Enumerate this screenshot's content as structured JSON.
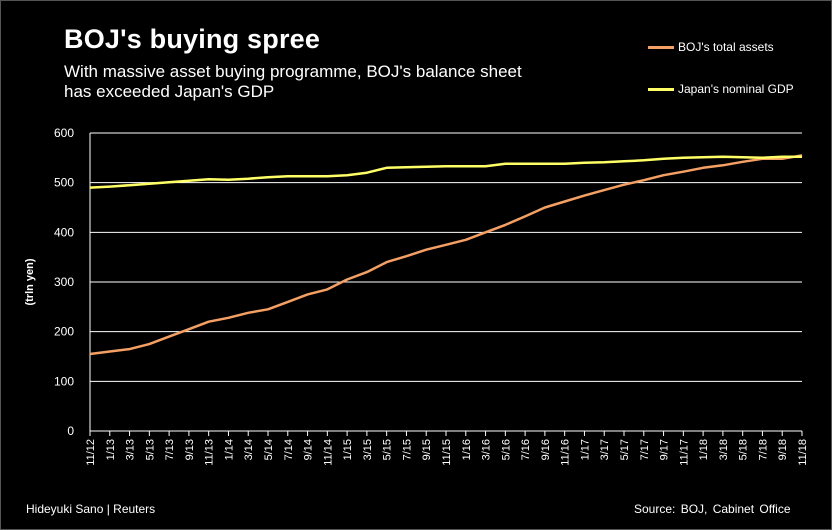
{
  "chart_data": {
    "type": "line",
    "title": "BOJ's  buying spree",
    "subtitle": "With massive asset buying programme, BOJ's balance sheet has exceeded Japan's GDP",
    "ylabel": "(trln yen)",
    "xlabel": "",
    "ylim": [
      0,
      600
    ],
    "yticks": [
      0,
      100,
      200,
      300,
      400,
      500,
      600
    ],
    "grid": "horizontal",
    "legend_position": "top-right",
    "x_tick_labels": [
      "11/12",
      "1/13",
      "3/13",
      "5/13",
      "7/13",
      "9/13",
      "11/13",
      "1/14",
      "3/14",
      "5/14",
      "7/14",
      "9/14",
      "11/14",
      "1/15",
      "3/15",
      "5/15",
      "7/15",
      "9/15",
      "11/15",
      "1/16",
      "3/16",
      "5/16",
      "7/16",
      "9/16",
      "11/16",
      "1/17",
      "3/17",
      "5/17",
      "7/17",
      "9/17",
      "11/17",
      "1/18",
      "3/18",
      "5/18",
      "7/18",
      "9/18",
      "11/18"
    ],
    "x": [
      "2012-11",
      "2013-01",
      "2013-03",
      "2013-05",
      "2013-07",
      "2013-09",
      "2013-11",
      "2014-01",
      "2014-03",
      "2014-05",
      "2014-07",
      "2014-09",
      "2014-11",
      "2015-01",
      "2015-03",
      "2015-05",
      "2015-07",
      "2015-09",
      "2015-11",
      "2016-01",
      "2016-03",
      "2016-05",
      "2016-07",
      "2016-09",
      "2016-11",
      "2017-01",
      "2017-03",
      "2017-05",
      "2017-07",
      "2017-09",
      "2017-11",
      "2018-01",
      "2018-03",
      "2018-05",
      "2018-07",
      "2018-09",
      "2018-11"
    ],
    "series": [
      {
        "name": "BOJ's total assets",
        "color": "#f4a064",
        "values": [
          155,
          160,
          165,
          175,
          190,
          205,
          220,
          228,
          238,
          245,
          260,
          275,
          285,
          305,
          320,
          340,
          352,
          365,
          375,
          385,
          400,
          415,
          432,
          450,
          462,
          474,
          485,
          496,
          505,
          515,
          522,
          530,
          535,
          542,
          548,
          548,
          555
        ]
      },
      {
        "name": "Japan's nominal GDP",
        "color": "#ffff66",
        "values": [
          490,
          492,
          495,
          498,
          501,
          504,
          507,
          506,
          508,
          511,
          513,
          513,
          513,
          515,
          520,
          530,
          531,
          532,
          533,
          533,
          533,
          538,
          538,
          538,
          538,
          540,
          541,
          543,
          545,
          548,
          550,
          551,
          552,
          551,
          550,
          552,
          552
        ]
      }
    ]
  },
  "footer": {
    "credit": "Hideyuki Sano | Reuters",
    "source": "Source:  BOJ, Cabinet  Office"
  }
}
